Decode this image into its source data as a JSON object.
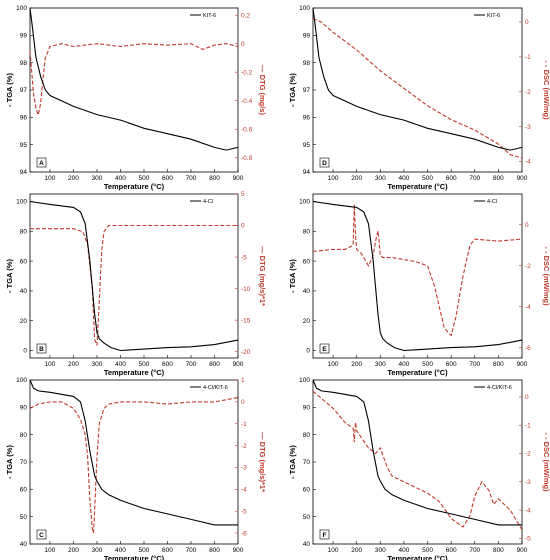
{
  "colors": {
    "tga": "#000000",
    "right": "#c0392b"
  },
  "chart_data": [
    {
      "type": "line",
      "panel": "A",
      "xlabel": "Temperature (°C)",
      "ylabel": "- TGA (%)",
      "ylabel_right": "— DTG (mg/s)",
      "legend": "KIT-6",
      "xlim": [
        15,
        900
      ],
      "xticks": [
        100,
        200,
        300,
        400,
        500,
        600,
        700,
        800,
        900
      ],
      "ylim": [
        94,
        100
      ],
      "yticks": [
        94,
        95,
        96,
        97,
        98,
        99,
        100
      ],
      "ylim_right": [
        -0.9,
        0.25
      ],
      "yticks_right": [
        -0.8,
        -0.6,
        -0.4,
        -0.2,
        0.0,
        0.2
      ],
      "tga": {
        "x": [
          15,
          25,
          40,
          60,
          80,
          100,
          150,
          200,
          300,
          400,
          500,
          600,
          700,
          800,
          850,
          900
        ],
        "y": [
          100,
          99.3,
          98.2,
          97.5,
          97.0,
          96.8,
          96.6,
          96.4,
          96.1,
          95.9,
          95.6,
          95.4,
          95.2,
          94.9,
          94.8,
          94.9
        ]
      },
      "right_series": {
        "x": [
          15,
          30,
          40,
          50,
          60,
          70,
          80,
          100,
          150,
          200,
          300,
          400,
          500,
          600,
          700,
          750,
          800,
          850,
          900
        ],
        "y": [
          -0.05,
          -0.35,
          -0.45,
          -0.5,
          -0.42,
          -0.25,
          -0.1,
          -0.02,
          0.0,
          -0.02,
          0.0,
          -0.02,
          0.0,
          -0.01,
          0.0,
          -0.04,
          -0.01,
          0.0,
          -0.02
        ]
      }
    },
    {
      "type": "line",
      "panel": "D",
      "xlabel": "Temperature (°C)",
      "ylabel": "- TGA (%)",
      "ylabel_right": "- - DSC (mW/mg)",
      "legend": "KIT-6",
      "xlim": [
        15,
        900
      ],
      "xticks": [
        100,
        200,
        300,
        400,
        500,
        600,
        700,
        800,
        900
      ],
      "ylim": [
        94,
        100
      ],
      "yticks": [
        94,
        95,
        96,
        97,
        98,
        99,
        100
      ],
      "ylim_right": [
        -4.3,
        0.4
      ],
      "yticks_right": [
        -4,
        -3,
        -2,
        -1,
        0
      ],
      "tga": {
        "x": [
          15,
          25,
          40,
          60,
          80,
          100,
          150,
          200,
          300,
          400,
          500,
          600,
          700,
          800,
          850,
          900
        ],
        "y": [
          100,
          99.3,
          98.2,
          97.5,
          97.0,
          96.8,
          96.6,
          96.4,
          96.1,
          95.9,
          95.6,
          95.4,
          95.2,
          94.9,
          94.8,
          94.9
        ]
      },
      "right_series": {
        "x": [
          15,
          50,
          100,
          200,
          300,
          400,
          500,
          600,
          700,
          800,
          850,
          900
        ],
        "y": [
          0.1,
          0.0,
          -0.3,
          -0.8,
          -1.4,
          -1.9,
          -2.4,
          -2.8,
          -3.1,
          -3.5,
          -3.8,
          -3.9
        ]
      }
    },
    {
      "type": "line",
      "panel": "B",
      "xlabel": "Temperature (°C)",
      "ylabel": "- TGA (%)",
      "ylabel_right": "— DTG (mg/s)*1*",
      "legend": "4-Cl",
      "xlim": [
        15,
        900
      ],
      "xticks": [
        100,
        200,
        300,
        400,
        500,
        600,
        700,
        800,
        900
      ],
      "ylim": [
        -5,
        105
      ],
      "yticks": [
        0,
        20,
        40,
        60,
        80,
        100
      ],
      "ylim_right": [
        -21,
        5
      ],
      "yticks_right": [
        -20,
        -15,
        -10,
        -5,
        0,
        5
      ],
      "tga": {
        "x": [
          15,
          100,
          200,
          230,
          250,
          270,
          290,
          300,
          310,
          330,
          360,
          400,
          450,
          500,
          600,
          700,
          800,
          900
        ],
        "y": [
          100,
          98,
          96,
          93,
          85,
          60,
          25,
          12,
          8,
          5,
          2,
          0,
          0.5,
          1,
          2,
          2.5,
          4,
          7
        ]
      },
      "right_series": {
        "x": [
          15,
          100,
          200,
          240,
          260,
          280,
          290,
          300,
          310,
          320,
          330,
          350,
          400,
          500,
          600,
          700,
          800,
          900
        ],
        "y": [
          -0.5,
          -0.5,
          -0.5,
          -1,
          -3,
          -10,
          -18,
          -19,
          -12,
          -4,
          -1,
          0,
          0,
          0,
          0,
          0,
          0,
          0
        ]
      }
    },
    {
      "type": "line",
      "panel": "E",
      "xlabel": "Temperature (°C)",
      "ylabel": "- TGA (%)",
      "ylabel_right": "- - DSC (mW/mg)",
      "legend": "4-Cl",
      "xlim": [
        15,
        900
      ],
      "xticks": [
        100,
        200,
        300,
        400,
        500,
        600,
        700,
        800,
        900
      ],
      "ylim": [
        -5,
        105
      ],
      "yticks": [
        0,
        20,
        40,
        60,
        80,
        100
      ],
      "ylim_right": [
        -6.5,
        1.5
      ],
      "yticks_right": [
        -6,
        -4,
        -2,
        0
      ],
      "tga": {
        "x": [
          15,
          100,
          200,
          230,
          250,
          270,
          290,
          300,
          310,
          330,
          360,
          400,
          450,
          500,
          600,
          700,
          800,
          900
        ],
        "y": [
          100,
          98,
          96,
          93,
          85,
          60,
          25,
          12,
          8,
          5,
          2,
          0,
          0.5,
          1,
          2,
          2.5,
          4,
          7
        ]
      },
      "right_series": {
        "x": [
          15,
          100,
          150,
          185,
          190,
          195,
          200,
          220,
          250,
          270,
          280,
          290,
          295,
          300,
          310,
          350,
          400,
          450,
          500,
          530,
          550,
          570,
          590,
          600,
          620,
          650,
          680,
          700,
          800,
          900
        ],
        "y": [
          -1.3,
          -1.2,
          -1.2,
          -1.0,
          1.0,
          -0.5,
          -1.2,
          -1.4,
          -2.0,
          -1.5,
          -0.8,
          -0.3,
          -0.8,
          -1.5,
          -1.6,
          -1.6,
          -1.7,
          -1.8,
          -2.0,
          -3.0,
          -4.0,
          -5.0,
          -5.3,
          -5.4,
          -4.5,
          -2.5,
          -1.0,
          -0.7,
          -0.8,
          -0.7
        ]
      }
    },
    {
      "type": "line",
      "panel": "C",
      "xlabel": "Temperature (°C)",
      "ylabel": "- TGA (%)",
      "ylabel_right": "— DTG (mg/s)*1*",
      "legend": "4-Cl/KIT-6",
      "xlim": [
        15,
        900
      ],
      "xticks": [
        100,
        200,
        300,
        400,
        500,
        600,
        700,
        800,
        900
      ],
      "ylim": [
        40,
        100
      ],
      "yticks": [
        40,
        50,
        60,
        70,
        80,
        90,
        100
      ],
      "ylim_right": [
        -6.5,
        1.0
      ],
      "yticks_right": [
        -6,
        -5,
        -4,
        -3,
        -2,
        -1,
        0,
        1
      ],
      "tga": {
        "x": [
          15,
          30,
          50,
          100,
          200,
          230,
          250,
          270,
          290,
          300,
          320,
          350,
          400,
          500,
          600,
          700,
          800,
          900
        ],
        "y": [
          100,
          97,
          96,
          95.5,
          94,
          92,
          85,
          74,
          65,
          63,
          60,
          58,
          56,
          53,
          51,
          49,
          47,
          47
        ]
      },
      "right_series": {
        "x": [
          15,
          50,
          100,
          150,
          200,
          230,
          250,
          260,
          270,
          280,
          285,
          290,
          300,
          310,
          330,
          350,
          400,
          500,
          600,
          700,
          800,
          900
        ],
        "y": [
          -0.3,
          -0.1,
          0,
          0,
          -0.3,
          -0.8,
          -1.5,
          -2.5,
          -4.5,
          -5.8,
          -6.0,
          -5.0,
          -2.5,
          -1.0,
          -0.3,
          -0.1,
          0,
          0,
          -0.1,
          0,
          0,
          0.2
        ]
      }
    },
    {
      "type": "line",
      "panel": "F",
      "xlabel": "Temperature (°C)",
      "ylabel": "- TGA (%)",
      "ylabel_right": "- - DSC (mW/mg)",
      "legend": "4-Cl/KIT-6",
      "xlim": [
        15,
        900
      ],
      "xticks": [
        100,
        200,
        300,
        400,
        500,
        600,
        700,
        800,
        900
      ],
      "ylim": [
        40,
        100
      ],
      "yticks": [
        40,
        50,
        60,
        70,
        80,
        90,
        100
      ],
      "ylim_right": [
        -5.2,
        0.6
      ],
      "yticks_right": [
        -5,
        -4,
        -3,
        -2,
        -1,
        0
      ],
      "tga": {
        "x": [
          15,
          30,
          50,
          100,
          200,
          230,
          250,
          270,
          290,
          300,
          320,
          350,
          400,
          500,
          600,
          700,
          800,
          900
        ],
        "y": [
          100,
          97,
          96,
          95.5,
          94,
          92,
          85,
          74,
          65,
          63,
          60,
          58,
          56,
          53,
          51,
          49,
          47,
          47
        ]
      },
      "right_series": {
        "x": [
          15,
          100,
          150,
          185,
          190,
          195,
          200,
          250,
          280,
          300,
          330,
          350,
          400,
          500,
          550,
          600,
          650,
          680,
          700,
          730,
          760,
          780,
          800,
          850,
          900
        ],
        "y": [
          0.2,
          -0.4,
          -0.9,
          -1.1,
          -1.6,
          -0.9,
          -1.2,
          -1.8,
          -2.0,
          -1.8,
          -2.5,
          -2.8,
          -3.0,
          -3.4,
          -3.7,
          -4.3,
          -4.6,
          -4.2,
          -3.5,
          -3.0,
          -3.3,
          -3.8,
          -3.6,
          -4.0,
          -4.7
        ]
      }
    }
  ]
}
